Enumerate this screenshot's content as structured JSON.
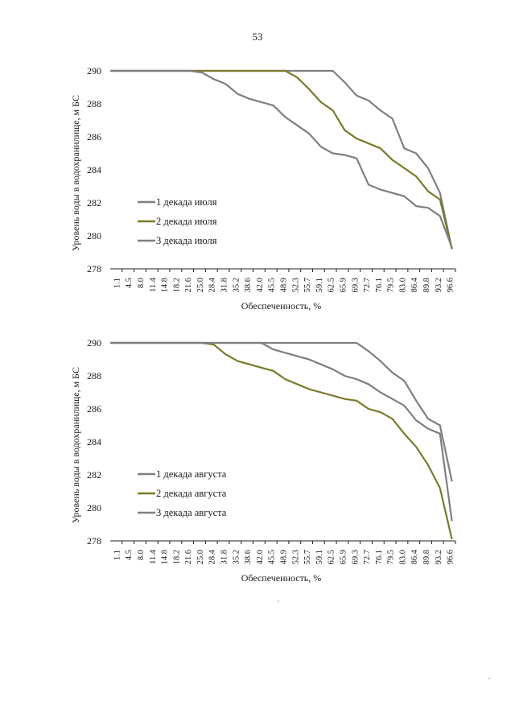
{
  "page_number": "53",
  "chart_data": [
    {
      "type": "line",
      "title": "",
      "xlabel": "Обеспеченность, %",
      "ylabel": "Уровень воды в водохранилище, м БС",
      "ylim": [
        278,
        290
      ],
      "yticks": [
        "278",
        "280",
        "282",
        "284",
        "286",
        "288",
        "290"
      ],
      "categories": [
        "1.1",
        "4.5",
        "8.0",
        "11.4",
        "14.8",
        "18.2",
        "21.6",
        "25.0",
        "28.4",
        "31.8",
        "35.2",
        "38.6",
        "42.0",
        "45.5",
        "48.9",
        "52.3",
        "55.7",
        "59.1",
        "62.5",
        "65.9",
        "69.3",
        "72.7",
        "76.1",
        "79.5",
        "83.0",
        "86.4",
        "89.8",
        "93.2",
        "96.6"
      ],
      "legend_position": "bottom-left",
      "series": [
        {
          "name": "1 декада июля",
          "color": "#7f7f7f",
          "values": [
            290.0,
            290.0,
            290.0,
            290.0,
            290.0,
            290.0,
            290.0,
            290.0,
            290.0,
            290.0,
            290.0,
            290.0,
            290.0,
            290.0,
            290.0,
            290.0,
            290.0,
            290.0,
            290.0,
            289.3,
            288.5,
            288.2,
            287.6,
            287.1,
            285.3,
            285.0,
            284.1,
            282.6,
            279.2
          ]
        },
        {
          "name": "2 декада июля",
          "color": "#7a7a2a",
          "values": [
            290.0,
            290.0,
            290.0,
            290.0,
            290.0,
            290.0,
            290.0,
            290.0,
            290.0,
            290.0,
            290.0,
            290.0,
            290.0,
            290.0,
            290.0,
            289.6,
            288.9,
            288.1,
            287.6,
            286.4,
            285.9,
            285.6,
            285.3,
            284.6,
            284.1,
            283.6,
            282.7,
            282.2,
            279.2
          ]
        },
        {
          "name": "3 декада июля",
          "color": "#7f7f7f",
          "values": [
            290.0,
            290.0,
            290.0,
            290.0,
            290.0,
            290.0,
            290.0,
            289.9,
            289.5,
            289.2,
            288.6,
            288.3,
            288.1,
            287.9,
            287.2,
            286.7,
            286.2,
            285.4,
            285.0,
            284.9,
            284.7,
            283.1,
            282.8,
            282.6,
            282.4,
            281.8,
            281.7,
            281.2,
            279.3
          ]
        }
      ]
    },
    {
      "type": "line",
      "title": "",
      "xlabel": "Обеспеченность, %",
      "ylabel": "Уровень воды в водохранилище, м БС",
      "ylim": [
        278,
        290
      ],
      "yticks": [
        "278",
        "280",
        "282",
        "284",
        "286",
        "288",
        "290"
      ],
      "categories": [
        "1.1",
        "4.5",
        "8.0",
        "11.4",
        "14.8",
        "18.2",
        "21.6",
        "25.0",
        "28.4",
        "31.8",
        "35.2",
        "38.6",
        "42.0",
        "45.5",
        "48.9",
        "52.3",
        "55.7",
        "59.1",
        "62.5",
        "65.9",
        "69.3",
        "72.7",
        "76.1",
        "79.5",
        "83.0",
        "86.4",
        "89.8",
        "93.2",
        "96.6"
      ],
      "legend_position": "bottom-left",
      "series": [
        {
          "name": "1 декада августа",
          "color": "#7f7f7f",
          "values": [
            290.0,
            290.0,
            290.0,
            290.0,
            290.0,
            290.0,
            290.0,
            290.0,
            290.0,
            290.0,
            290.0,
            290.0,
            290.0,
            290.0,
            290.0,
            290.0,
            290.0,
            290.0,
            290.0,
            290.0,
            290.0,
            289.5,
            288.9,
            288.2,
            287.7,
            286.5,
            285.4,
            285.0,
            281.6
          ]
        },
        {
          "name": "2 декада августа",
          "color": "#7a7a2a",
          "values": [
            290.0,
            290.0,
            290.0,
            290.0,
            290.0,
            290.0,
            290.0,
            290.0,
            289.9,
            289.3,
            288.9,
            288.7,
            288.5,
            288.3,
            287.8,
            287.5,
            287.2,
            287.0,
            286.8,
            286.6,
            286.5,
            286.0,
            285.8,
            285.4,
            284.5,
            283.7,
            282.6,
            281.2,
            278.1
          ]
        },
        {
          "name": "3 декада августа",
          "color": "#7f7f7f",
          "values": [
            290.0,
            290.0,
            290.0,
            290.0,
            290.0,
            290.0,
            290.0,
            290.0,
            290.0,
            290.0,
            290.0,
            290.0,
            290.0,
            289.6,
            289.4,
            289.2,
            289.0,
            288.7,
            288.4,
            288.0,
            287.8,
            287.5,
            287.0,
            286.6,
            286.2,
            285.3,
            284.8,
            284.5,
            279.2
          ]
        }
      ]
    }
  ]
}
